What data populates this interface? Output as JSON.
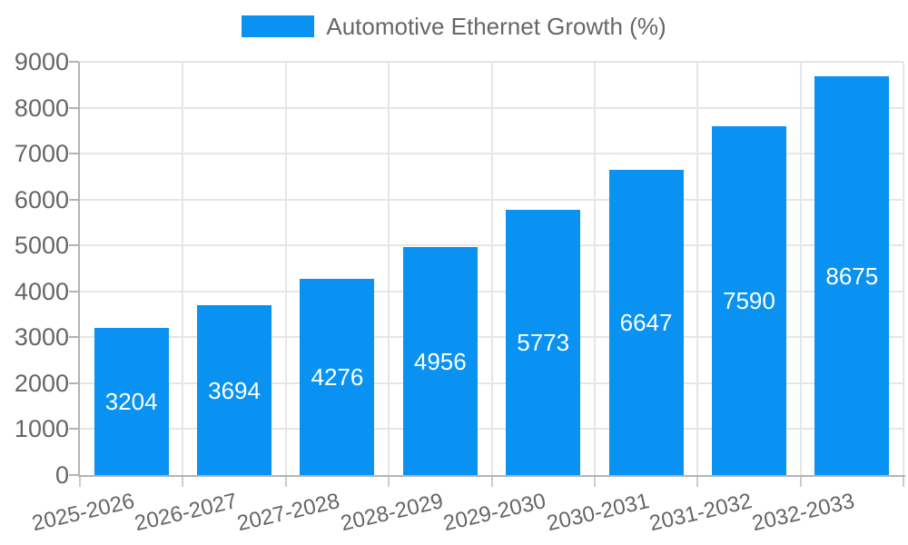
{
  "chart_data": {
    "type": "bar",
    "title": "Automotive Ethernet Growth (%)",
    "categories": [
      "2025-2026",
      "2026-2027",
      "2027-2028",
      "2028-2029",
      "2029-2030",
      "2030-2031",
      "2031-2032",
      "2032-2033"
    ],
    "values": [
      3204,
      3694,
      4276,
      4956,
      5773,
      6647,
      7590,
      8675
    ],
    "xlabel": "",
    "ylabel": "",
    "ylim": [
      0,
      9000
    ],
    "yticks": [
      0,
      1000,
      2000,
      3000,
      4000,
      5000,
      6000,
      7000,
      8000,
      9000
    ],
    "grid": true,
    "legend_position": "top",
    "bar_color": "#0992f2",
    "value_label_color": "#ffffff",
    "axis_text_color": "#666666"
  }
}
